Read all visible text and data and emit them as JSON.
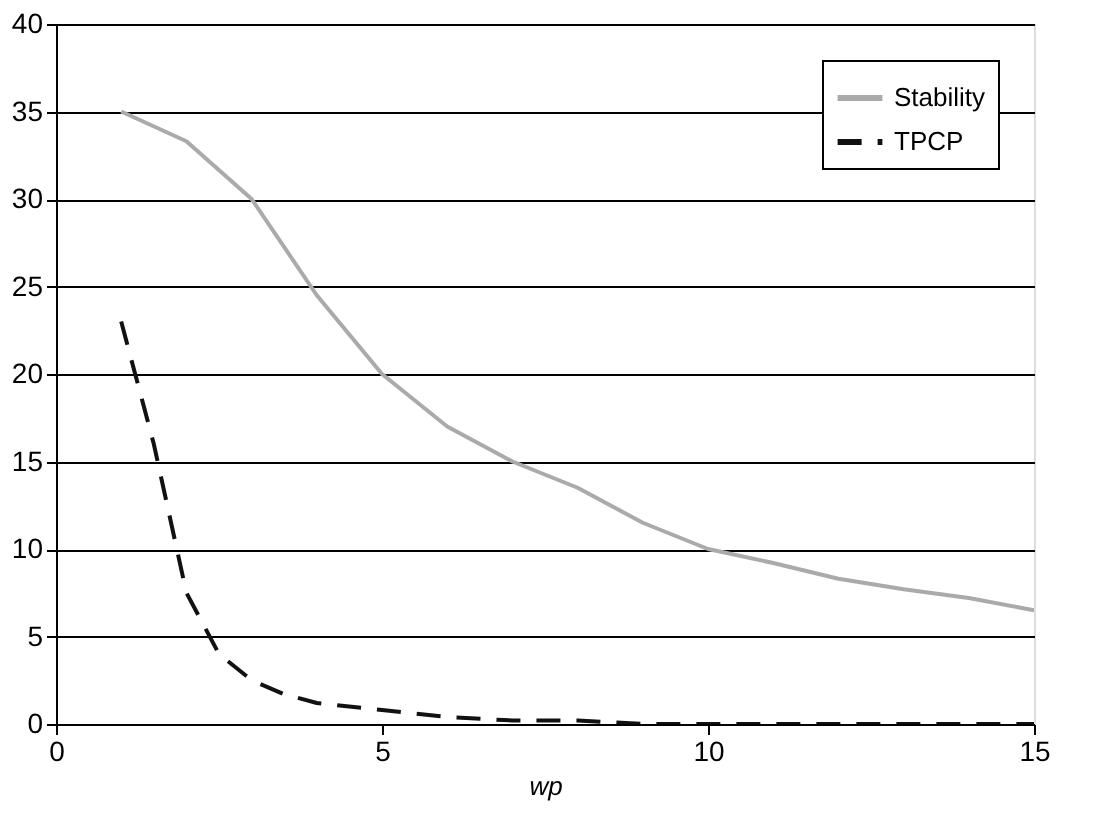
{
  "chart_data": {
    "type": "line",
    "xlabel": "wp",
    "xlim": [
      0,
      15
    ],
    "xticks": [
      0,
      5,
      10,
      15
    ],
    "ylim": [
      0,
      40
    ],
    "yticks": [
      0,
      5,
      10,
      15,
      20,
      25,
      30,
      35,
      40
    ],
    "grid": "y",
    "legend": "top right",
    "marker": "none",
    "series": [
      {
        "name": "Stability",
        "color": "#aaaaaa",
        "line_style": "solid",
        "x": [
          1,
          2,
          3,
          4,
          5,
          6,
          7,
          8,
          9,
          10,
          11,
          12,
          13,
          14,
          15
        ],
        "values": [
          35,
          33.3,
          30,
          24.5,
          20,
          17,
          15,
          13.5,
          11.5,
          10,
          9.2,
          8.3,
          7.7,
          7.2,
          6.5
        ]
      },
      {
        "name": "TPCP",
        "color": "#111111",
        "line_style": "dashed",
        "x": [
          1,
          1.5,
          2,
          2.5,
          3,
          3.5,
          4,
          5,
          6,
          7,
          8,
          9,
          10,
          11,
          12,
          13,
          14,
          15
        ],
        "values": [
          23,
          16,
          7.5,
          4,
          2.5,
          1.7,
          1.2,
          0.8,
          0.4,
          0.2,
          0.2,
          0,
          0,
          0,
          0,
          0,
          0,
          0
        ]
      }
    ]
  }
}
